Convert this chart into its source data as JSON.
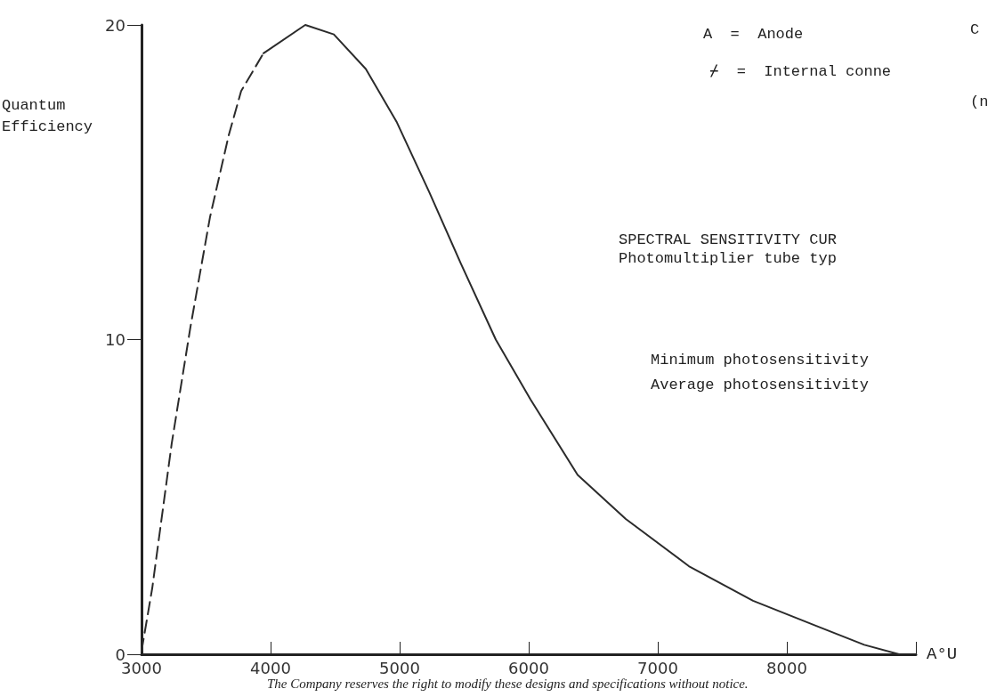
{
  "chart_data": {
    "type": "line",
    "title": "SPECTRAL SENSITIVITY CUR",
    "subtitle": "Photomultiplier tube typ",
    "xlabel": "A°U",
    "ylabel": "Quantum Efficiency",
    "series": [
      {
        "color": "#2b2b2b",
        "line_style": "dashed",
        "x": [
          3000,
          3083,
          3234,
          3379,
          3531,
          3676,
          3772,
          3945
        ],
        "values": [
          0.1,
          2.1,
          6.7,
          10.4,
          13.9,
          16.5,
          17.9,
          19.1
        ]
      },
      {
        "color": "#2b2b2b",
        "line_style": "solid",
        "x": [
          3945,
          4269,
          4490,
          4738,
          4979,
          5228,
          5476,
          5745,
          6014,
          6379,
          6752,
          7241,
          7738,
          8228,
          8600,
          8870
        ],
        "values": [
          19.1,
          20.0,
          19.7,
          18.6,
          16.9,
          14.7,
          12.4,
          10.0,
          8.1,
          5.7,
          4.3,
          2.8,
          1.7,
          0.9,
          0.3,
          0
        ]
      }
    ],
    "xlim": [
      3000,
      9000
    ],
    "xticks": [
      3000,
      4000,
      5000,
      6000,
      7000,
      8000,
      {
        "value": 9000,
        "label": null
      }
    ],
    "ylim": [
      0,
      20
    ],
    "yticks": [
      0,
      10,
      20
    ],
    "marker": "none",
    "annotations": [
      "A  =  Anode",
      "C",
      "⌿  =  Internal conne",
      "(n",
      "Minimum photosensitivity",
      "Average photosensitivity",
      "The Company reserves the right to modify these designs and specifications without notice."
    ]
  }
}
